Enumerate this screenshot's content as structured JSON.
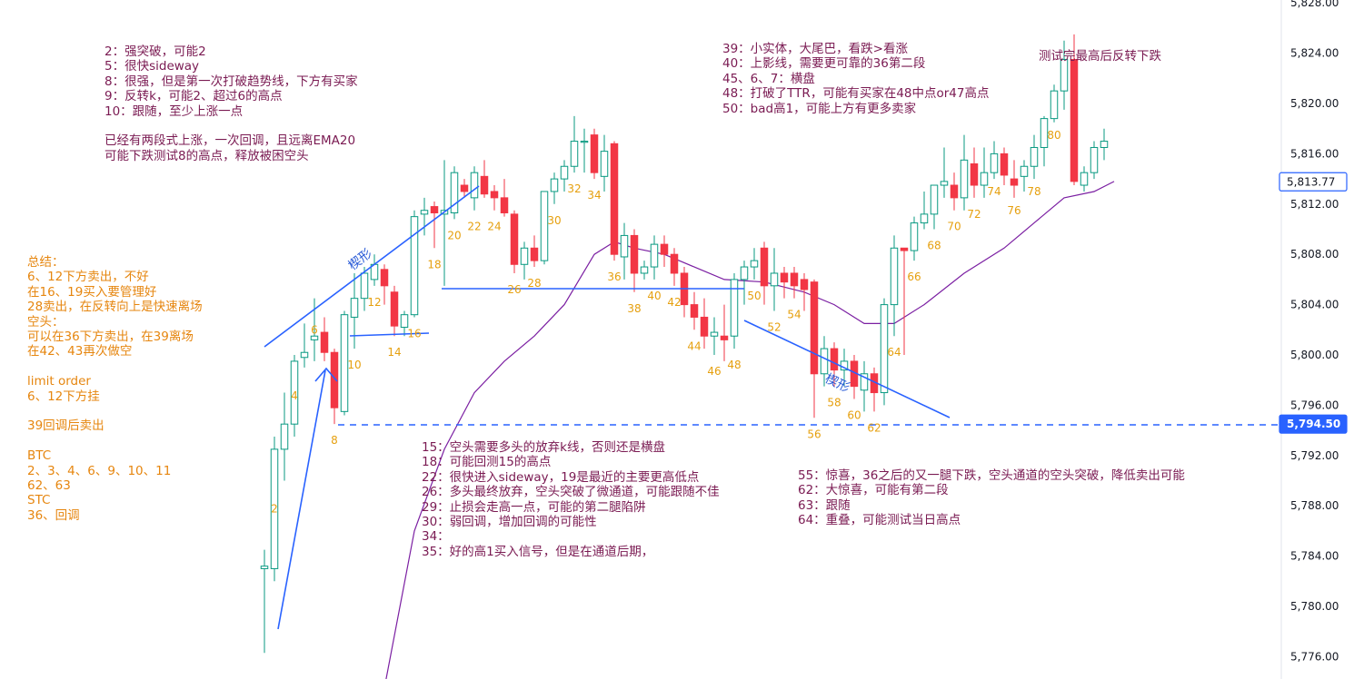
{
  "chart_data": {
    "type": "candlestick",
    "y_axis_side": "right",
    "ylim": [
      5775.0,
      5828.5
    ],
    "y_ticks": [
      "5,776.00",
      "5,780.00",
      "5,784.00",
      "5,788.00",
      "5,792.00",
      "5,796.00",
      "5,800.00",
      "5,804.00",
      "5,808.00",
      "5,812.00",
      "5,816.00",
      "5,820.00",
      "5,824.00",
      "5,828.00"
    ],
    "y_tick_values": [
      5776,
      5780,
      5784,
      5788,
      5792,
      5796,
      5800,
      5804,
      5808,
      5812,
      5816,
      5820,
      5824,
      5828
    ],
    "price_labels": [
      {
        "value": 5813.77,
        "text": "5,813.77",
        "style": "outline"
      },
      {
        "value": 5794.5,
        "text": "5,794.50",
        "style": "filled"
      }
    ],
    "up_color": "#089981",
    "down_color": "#f23645",
    "ema_color": "#7b1fa2",
    "bars": [
      {
        "o": 5783.0,
        "h": 5784.5,
        "l": 5776.3,
        "c": 5783.2
      },
      {
        "o": 5783.0,
        "h": 5793.5,
        "l": 5782.0,
        "c": 5792.5
      },
      {
        "o": 5792.5,
        "h": 5797.0,
        "l": 5790.0,
        "c": 5794.5
      },
      {
        "o": 5794.5,
        "h": 5800.0,
        "l": 5793.5,
        "c": 5799.5
      },
      {
        "o": 5799.8,
        "h": 5802.5,
        "l": 5799.0,
        "c": 5800.2
      },
      {
        "o": 5801.2,
        "h": 5804.5,
        "l": 5799.5,
        "c": 5801.5
      },
      {
        "o": 5801.8,
        "h": 5803.0,
        "l": 5799.5,
        "c": 5800.2
      },
      {
        "o": 5800.2,
        "h": 5800.5,
        "l": 5794.5,
        "c": 5795.8
      },
      {
        "o": 5795.5,
        "h": 5803.5,
        "l": 5795.2,
        "c": 5803.2
      },
      {
        "o": 5803.0,
        "h": 5806.5,
        "l": 5800.5,
        "c": 5804.5
      },
      {
        "o": 5804.5,
        "h": 5807.0,
        "l": 5803.5,
        "c": 5806.5
      },
      {
        "o": 5806.0,
        "h": 5808.0,
        "l": 5805.5,
        "c": 5807.2
      },
      {
        "o": 5806.8,
        "h": 5807.2,
        "l": 5804.0,
        "c": 5805.5
      },
      {
        "o": 5805.0,
        "h": 5805.5,
        "l": 5801.5,
        "c": 5802.3
      },
      {
        "o": 5802.2,
        "h": 5803.5,
        "l": 5801.5,
        "c": 5803.2
      },
      {
        "o": 5803.2,
        "h": 5811.5,
        "l": 5803.0,
        "c": 5811.0
      },
      {
        "o": 5811.2,
        "h": 5812.5,
        "l": 5809.5,
        "c": 5811.5
      },
      {
        "o": 5811.8,
        "h": 5812.2,
        "l": 5808.5,
        "c": 5811.3
      },
      {
        "o": 5811.2,
        "h": 5815.5,
        "l": 5805.5,
        "c": 5811.5
      },
      {
        "o": 5811.3,
        "h": 5815.0,
        "l": 5810.8,
        "c": 5814.5
      },
      {
        "o": 5813.5,
        "h": 5814.0,
        "l": 5812.5,
        "c": 5813.0
      },
      {
        "o": 5812.5,
        "h": 5815.0,
        "l": 5811.5,
        "c": 5814.5
      },
      {
        "o": 5814.2,
        "h": 5815.5,
        "l": 5812.5,
        "c": 5812.8
      },
      {
        "o": 5813.0,
        "h": 5813.5,
        "l": 5811.5,
        "c": 5812.5
      },
      {
        "o": 5812.5,
        "h": 5814.0,
        "l": 5811.0,
        "c": 5811.3
      },
      {
        "o": 5811.2,
        "h": 5811.5,
        "l": 5806.5,
        "c": 5807.2
      },
      {
        "o": 5807.2,
        "h": 5809.0,
        "l": 5806.0,
        "c": 5808.5
      },
      {
        "o": 5808.5,
        "h": 5809.5,
        "l": 5807.0,
        "c": 5807.5
      },
      {
        "o": 5807.5,
        "h": 5812.8,
        "l": 5807.2,
        "c": 5813.0
      },
      {
        "o": 5813.0,
        "h": 5814.5,
        "l": 5812.0,
        "c": 5814.0
      },
      {
        "o": 5814.0,
        "h": 5815.5,
        "l": 5813.0,
        "c": 5815.0
      },
      {
        "o": 5815.0,
        "h": 5819.0,
        "l": 5814.5,
        "c": 5817.0
      },
      {
        "o": 5817.0,
        "h": 5818.0,
        "l": 5814.5,
        "c": 5817.0
      },
      {
        "o": 5817.5,
        "h": 5818.0,
        "l": 5814.0,
        "c": 5814.5
      },
      {
        "o": 5814.2,
        "h": 5817.5,
        "l": 5813.0,
        "c": 5816.2
      },
      {
        "o": 5816.8,
        "h": 5817.0,
        "l": 5807.5,
        "c": 5808.0
      },
      {
        "o": 5807.8,
        "h": 5810.5,
        "l": 5806.0,
        "c": 5809.5
      },
      {
        "o": 5809.5,
        "h": 5810.0,
        "l": 5805.0,
        "c": 5806.5
      },
      {
        "o": 5806.5,
        "h": 5807.5,
        "l": 5806.0,
        "c": 5807.0
      },
      {
        "o": 5807.0,
        "h": 5809.5,
        "l": 5806.0,
        "c": 5808.8
      },
      {
        "o": 5808.8,
        "h": 5809.5,
        "l": 5807.0,
        "c": 5808.0
      },
      {
        "o": 5808.0,
        "h": 5808.5,
        "l": 5805.5,
        "c": 5806.5
      },
      {
        "o": 5806.5,
        "h": 5807.0,
        "l": 5803.0,
        "c": 5804.0
      },
      {
        "o": 5804.0,
        "h": 5805.0,
        "l": 5802.0,
        "c": 5803.0
      },
      {
        "o": 5803.0,
        "h": 5804.5,
        "l": 5800.5,
        "c": 5801.5
      },
      {
        "o": 5801.5,
        "h": 5803.0,
        "l": 5800.0,
        "c": 5801.8
      },
      {
        "o": 5801.5,
        "h": 5804.0,
        "l": 5799.5,
        "c": 5801.2
      },
      {
        "o": 5801.5,
        "h": 5806.5,
        "l": 5800.5,
        "c": 5806.0
      },
      {
        "o": 5806.0,
        "h": 5807.5,
        "l": 5804.0,
        "c": 5807.0
      },
      {
        "o": 5807.0,
        "h": 5808.5,
        "l": 5806.0,
        "c": 5807.5
      },
      {
        "o": 5808.5,
        "h": 5809.0,
        "l": 5804.0,
        "c": 5805.5
      },
      {
        "o": 5805.5,
        "h": 5808.5,
        "l": 5803.5,
        "c": 5806.5
      },
      {
        "o": 5806.5,
        "h": 5807.0,
        "l": 5804.5,
        "c": 5805.8
      },
      {
        "o": 5806.5,
        "h": 5807.0,
        "l": 5804.5,
        "c": 5805.5
      },
      {
        "o": 5806.0,
        "h": 5806.5,
        "l": 5803.5,
        "c": 5805.2
      },
      {
        "o": 5805.8,
        "h": 5806.0,
        "l": 5795.0,
        "c": 5798.5
      },
      {
        "o": 5798.5,
        "h": 5801.5,
        "l": 5797.5,
        "c": 5800.5
      },
      {
        "o": 5800.5,
        "h": 5801.0,
        "l": 5797.5,
        "c": 5798.8
      },
      {
        "o": 5798.8,
        "h": 5800.5,
        "l": 5797.5,
        "c": 5799.5
      },
      {
        "o": 5799.5,
        "h": 5800.0,
        "l": 5796.5,
        "c": 5797.5
      },
      {
        "o": 5797.2,
        "h": 5799.5,
        "l": 5795.5,
        "c": 5798.5
      },
      {
        "o": 5798.5,
        "h": 5799.0,
        "l": 5795.5,
        "c": 5797.0
      },
      {
        "o": 5797.0,
        "h": 5804.5,
        "l": 5796.0,
        "c": 5804.0
      },
      {
        "o": 5804.0,
        "h": 5809.5,
        "l": 5801.5,
        "c": 5808.5
      },
      {
        "o": 5808.5,
        "h": 5808.5,
        "l": 5800.0,
        "c": 5808.3
      },
      {
        "o": 5808.3,
        "h": 5811.0,
        "l": 5807.5,
        "c": 5810.5
      },
      {
        "o": 5810.5,
        "h": 5813.0,
        "l": 5810.0,
        "c": 5811.2
      },
      {
        "o": 5811.2,
        "h": 5813.5,
        "l": 5810.0,
        "c": 5813.5
      },
      {
        "o": 5813.5,
        "h": 5816.5,
        "l": 5812.5,
        "c": 5813.8
      },
      {
        "o": 5813.5,
        "h": 5814.5,
        "l": 5811.5,
        "c": 5812.5
      },
      {
        "o": 5812.5,
        "h": 5817.5,
        "l": 5811.5,
        "c": 5815.5
      },
      {
        "o": 5815.2,
        "h": 5816.5,
        "l": 5812.5,
        "c": 5813.5
      },
      {
        "o": 5813.5,
        "h": 5816.5,
        "l": 5812.5,
        "c": 5814.5
      },
      {
        "o": 5814.5,
        "h": 5817.0,
        "l": 5814.0,
        "c": 5816.0
      },
      {
        "o": 5816.0,
        "h": 5816.5,
        "l": 5813.5,
        "c": 5814.3
      },
      {
        "o": 5814.0,
        "h": 5815.5,
        "l": 5812.5,
        "c": 5813.5
      },
      {
        "o": 5814.2,
        "h": 5815.5,
        "l": 5813.0,
        "c": 5815.0
      },
      {
        "o": 5815.0,
        "h": 5817.5,
        "l": 5814.0,
        "c": 5816.5
      },
      {
        "o": 5816.5,
        "h": 5819.0,
        "l": 5815.0,
        "c": 5818.8
      },
      {
        "o": 5818.8,
        "h": 5821.5,
        "l": 5818.5,
        "c": 5821.0
      },
      {
        "o": 5821.0,
        "h": 5825.0,
        "l": 5819.5,
        "c": 5823.5
      },
      {
        "o": 5823.5,
        "h": 5825.5,
        "l": 5813.5,
        "c": 5813.8
      },
      {
        "o": 5813.5,
        "h": 5815.0,
        "l": 5813.0,
        "c": 5814.5
      },
      {
        "o": 5814.5,
        "h": 5817.0,
        "l": 5814.0,
        "c": 5816.5
      },
      {
        "o": 5816.5,
        "h": 5818.0,
        "l": 5815.5,
        "c": 5817.0
      }
    ],
    "ema20": [
      {
        "i": 12,
        "v": 5773.5
      },
      {
        "i": 15,
        "v": 5786.0
      },
      {
        "i": 18,
        "v": 5792.5
      },
      {
        "i": 21,
        "v": 5797.0
      },
      {
        "i": 24,
        "v": 5799.5
      },
      {
        "i": 27,
        "v": 5801.5
      },
      {
        "i": 30,
        "v": 5804.0
      },
      {
        "i": 33,
        "v": 5808.0
      },
      {
        "i": 35,
        "v": 5809.0
      },
      {
        "i": 37,
        "v": 5808.5
      },
      {
        "i": 40,
        "v": 5808.0
      },
      {
        "i": 43,
        "v": 5807.0
      },
      {
        "i": 46,
        "v": 5806.0
      },
      {
        "i": 50,
        "v": 5805.8
      },
      {
        "i": 54,
        "v": 5805.0
      },
      {
        "i": 57,
        "v": 5804.0
      },
      {
        "i": 60,
        "v": 5802.5
      },
      {
        "i": 63,
        "v": 5802.5
      },
      {
        "i": 66,
        "v": 5804.0
      },
      {
        "i": 70,
        "v": 5806.5
      },
      {
        "i": 74,
        "v": 5808.5
      },
      {
        "i": 77,
        "v": 5810.5
      },
      {
        "i": 80,
        "v": 5812.5
      },
      {
        "i": 83,
        "v": 5813.0
      },
      {
        "i": 85,
        "v": 5813.8
      }
    ],
    "bar_numbers": [
      {
        "n": "2",
        "i": 1
      },
      {
        "n": "4",
        "i": 3
      },
      {
        "n": "6",
        "i": 5
      },
      {
        "n": "8",
        "i": 7
      },
      {
        "n": "10",
        "i": 9
      },
      {
        "n": "12",
        "i": 11
      },
      {
        "n": "14",
        "i": 13
      },
      {
        "n": "16",
        "i": 15
      },
      {
        "n": "18",
        "i": 17
      },
      {
        "n": "20",
        "i": 19
      },
      {
        "n": "22",
        "i": 21
      },
      {
        "n": "24",
        "i": 23
      },
      {
        "n": "26",
        "i": 25
      },
      {
        "n": "28",
        "i": 27
      },
      {
        "n": "30",
        "i": 29
      },
      {
        "n": "32",
        "i": 31
      },
      {
        "n": "34",
        "i": 33
      },
      {
        "n": "36",
        "i": 35
      },
      {
        "n": "38",
        "i": 37
      },
      {
        "n": "40",
        "i": 39
      },
      {
        "n": "42",
        "i": 41
      },
      {
        "n": "44",
        "i": 43
      },
      {
        "n": "46",
        "i": 45
      },
      {
        "n": "48",
        "i": 47
      },
      {
        "n": "50",
        "i": 49
      },
      {
        "n": "52",
        "i": 51
      },
      {
        "n": "54",
        "i": 53
      },
      {
        "n": "56",
        "i": 55
      },
      {
        "n": "58",
        "i": 57
      },
      {
        "n": "60",
        "i": 59
      },
      {
        "n": "62",
        "i": 61
      },
      {
        "n": "64",
        "i": 63
      },
      {
        "n": "66",
        "i": 65
      },
      {
        "n": "68",
        "i": 67
      },
      {
        "n": "70",
        "i": 69
      },
      {
        "n": "72",
        "i": 71
      },
      {
        "n": "74",
        "i": 73
      },
      {
        "n": "76",
        "i": 75
      },
      {
        "n": "78",
        "i": 77
      },
      {
        "n": "80",
        "i": 79
      }
    ],
    "wedge_label": "楔形",
    "line_color": "#2962ff"
  },
  "notes": {
    "top_left": [
      "2：强突破，可能2",
      "5：很快sideway",
      "8：很强，但是第一次打破趋势线，下方有买家",
      "9：反转k，可能2、超过6的高点",
      "10：跟随，至少上涨一点",
      "",
      "已经有两段式上涨，一次回调，且远离EMA20",
      "可能下跌测试8的高点，释放被困空头"
    ],
    "top_right": [
      "39：小实体，大尾巴，看跌>看涨",
      "40：上影线，需要更可靠的36第二段",
      "45、6、7：横盘",
      "48：打破了TTR，可能有买家在48中点or47高点",
      "50：bad高1，可能上方有更多卖家"
    ],
    "far_right": "测试完最高后反转下跌",
    "summary": [
      "总结：",
      "6、12下方卖出，不好",
      "在16、19买入要管理好",
      "28卖出，在反转向上是快速离场",
      "空头：",
      "可以在36下方卖出，在39离场",
      "在42、43再次做空",
      "",
      "limit order",
      "6、12下方挂",
      "",
      "39回调后卖出",
      "",
      "BTC",
      "2、3、4、6、9、10、11",
      "62、63",
      "STC",
      "36、回调"
    ],
    "bottom_middle": [
      "15：空头需要多头的放弃k线，否则还是横盘",
      "18：可能回测15的高点",
      "22：很快进入sideway，19是最近的主要更高低点",
      "26：多头最终放弃，空头突破了微通道，可能跟随不佳",
      "29：止损会走高一点，可能的第二腿陷阱",
      "30：弱回调，增加回调的可能性",
      "34：",
      "35：好的高1买入信号，但是在通道后期，"
    ],
    "bottom_right": [
      "55：惊喜，36之后的又一腿下跌，空头通道的空头突破，降低卖出可能",
      "62：大惊喜，可能有第二段",
      "63：跟随",
      "64：重叠，可能测试当日高点"
    ]
  }
}
